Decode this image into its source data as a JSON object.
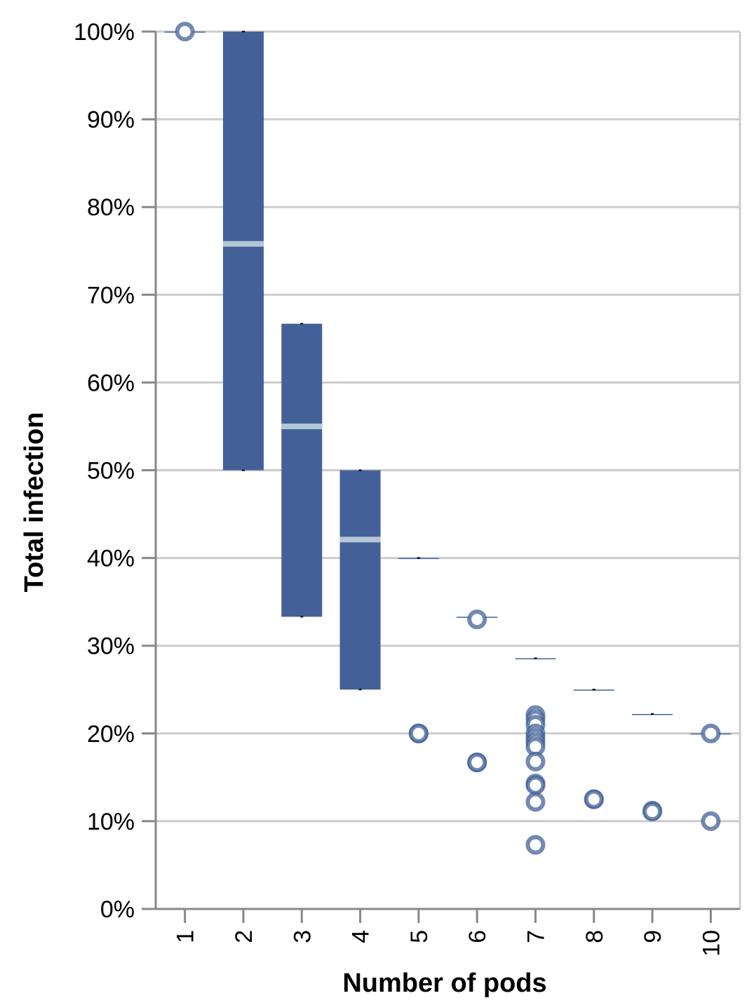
{
  "chart_data": {
    "type": "boxplot",
    "xlabel": "Number of pods",
    "ylabel": "Total infection",
    "ylim": [
      0,
      1
    ],
    "yticks": [
      "0%",
      "10%",
      "20%",
      "30%",
      "40%",
      "50%",
      "60%",
      "70%",
      "80%",
      "90%",
      "100%"
    ],
    "categories": [
      "1",
      "2",
      "3",
      "4",
      "5",
      "6",
      "7",
      "8",
      "9",
      "10"
    ],
    "grid": true,
    "colors": {
      "box": "#436198",
      "median": "#b3c7d6",
      "grid": "#cccccc",
      "axis": "#888888",
      "outlier": "#436198"
    },
    "boxes": [
      {
        "x": "1",
        "min": 1.0,
        "q1": 1.0,
        "median": 1.0,
        "q3": 1.0,
        "max": 1.0,
        "outliers": [
          1.0
        ]
      },
      {
        "x": "2",
        "min": 0.5,
        "q1": 0.5,
        "median": 0.758,
        "q3": 1.0,
        "max": 1.0,
        "outliers": []
      },
      {
        "x": "3",
        "min": 0.333,
        "q1": 0.333,
        "median": 0.55,
        "q3": 0.667,
        "max": 0.667,
        "outliers": []
      },
      {
        "x": "4",
        "min": 0.25,
        "q1": 0.25,
        "median": 0.421,
        "q3": 0.5,
        "max": 0.5,
        "outliers": []
      },
      {
        "x": "5",
        "min": 0.4,
        "q1": 0.4,
        "median": 0.4,
        "q3": 0.4,
        "max": 0.4,
        "outliers": [
          0.2,
          0.2
        ]
      },
      {
        "x": "6",
        "min": 0.333,
        "q1": 0.333,
        "median": 0.333,
        "q3": 0.333,
        "max": 0.333,
        "outliers": [
          0.33,
          0.167,
          0.167
        ]
      },
      {
        "x": "7",
        "min": 0.2857,
        "q1": 0.2857,
        "median": 0.2857,
        "q3": 0.2857,
        "max": 0.2857,
        "outliers": [
          0.221,
          0.216,
          0.21,
          0.2,
          0.195,
          0.19,
          0.185,
          0.168,
          0.143,
          0.141,
          0.122,
          0.073
        ]
      },
      {
        "x": "8",
        "min": 0.25,
        "q1": 0.25,
        "median": 0.25,
        "q3": 0.25,
        "max": 0.25,
        "outliers": [
          0.125,
          0.125
        ]
      },
      {
        "x": "9",
        "min": 0.2222,
        "q1": 0.2222,
        "median": 0.2222,
        "q3": 0.2222,
        "max": 0.2222,
        "outliers": [
          0.112,
          0.111
        ]
      },
      {
        "x": "10",
        "min": 0.2,
        "q1": 0.2,
        "median": 0.2,
        "q3": 0.2,
        "max": 0.2,
        "outliers": [
          0.2,
          0.1
        ]
      }
    ]
  }
}
